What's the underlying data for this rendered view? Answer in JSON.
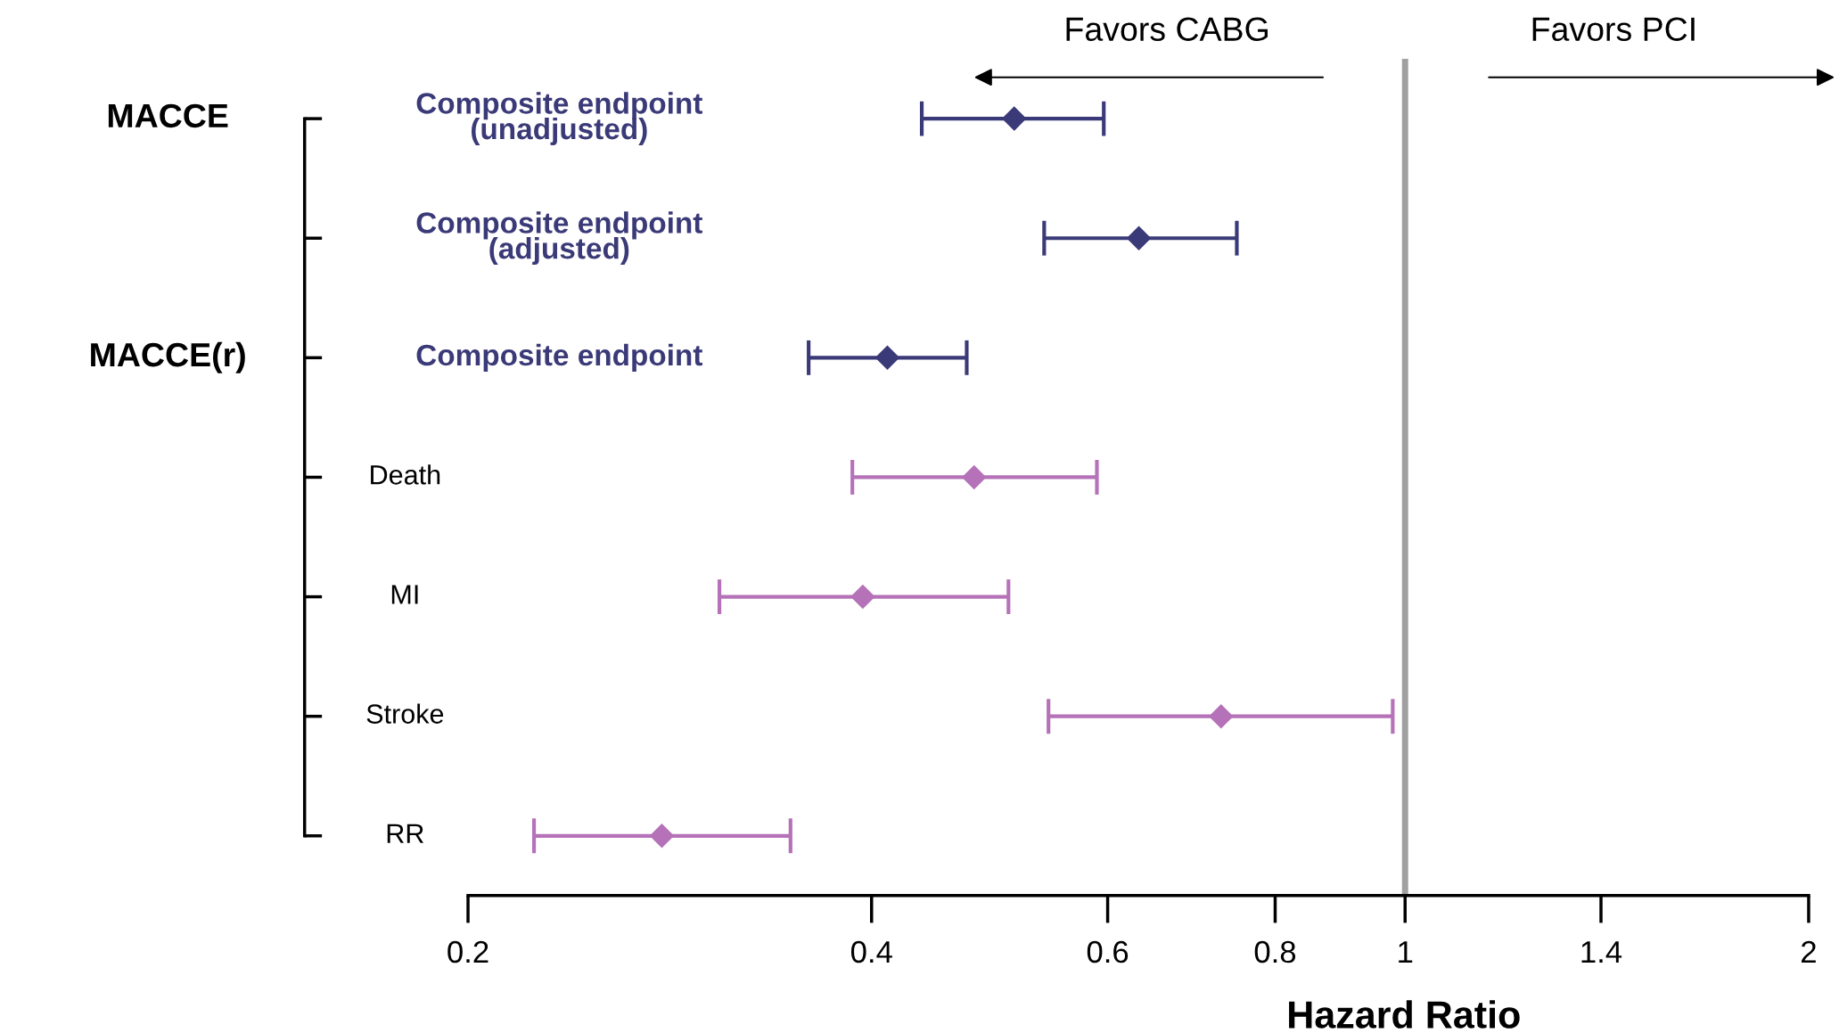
{
  "chart_data": {
    "type": "scatter",
    "orientation": "horizontal",
    "log": "x",
    "marker": "diamond",
    "grid": false,
    "categories": [
      "Composite endpoint\n(unadjusted)",
      "Composite endpoint\n(adjusted)",
      "Composite endpoint",
      "Death",
      "MI",
      "Stroke",
      "RR"
    ],
    "series": [
      {
        "color": "#3b3a78",
        "values": [
          0.511,
          0.633,
          0.411,
          null,
          null,
          null,
          null
        ],
        "errors": [
          [
            0.436,
            0.596
          ],
          [
            0.538,
            0.749
          ],
          [
            0.359,
            0.471
          ],
          null,
          null,
          null,
          null
        ]
      },
      {
        "color": "#b572b8",
        "values": [
          null,
          null,
          null,
          0.477,
          0.394,
          0.729,
          0.279
        ],
        "errors": [
          null,
          null,
          null,
          [
            0.387,
            0.589
          ],
          [
            0.308,
            0.506
          ],
          [
            0.542,
            0.979
          ],
          [
            0.224,
            0.348
          ]
        ]
      }
    ],
    "xlim": [
      0.2,
      2
    ],
    "xticks": [
      0.2,
      0.4,
      0.6,
      0.8,
      1,
      1.4,
      2
    ],
    "xlabel": "Hazard Ratio",
    "ref_lines": [
      {
        "axis": "x",
        "value": 1,
        "color": "#a0a0a0"
      }
    ],
    "annotations": [
      "MACCE",
      "MACCE(r)",
      "Favors CABG",
      "Favors PCI"
    ]
  }
}
